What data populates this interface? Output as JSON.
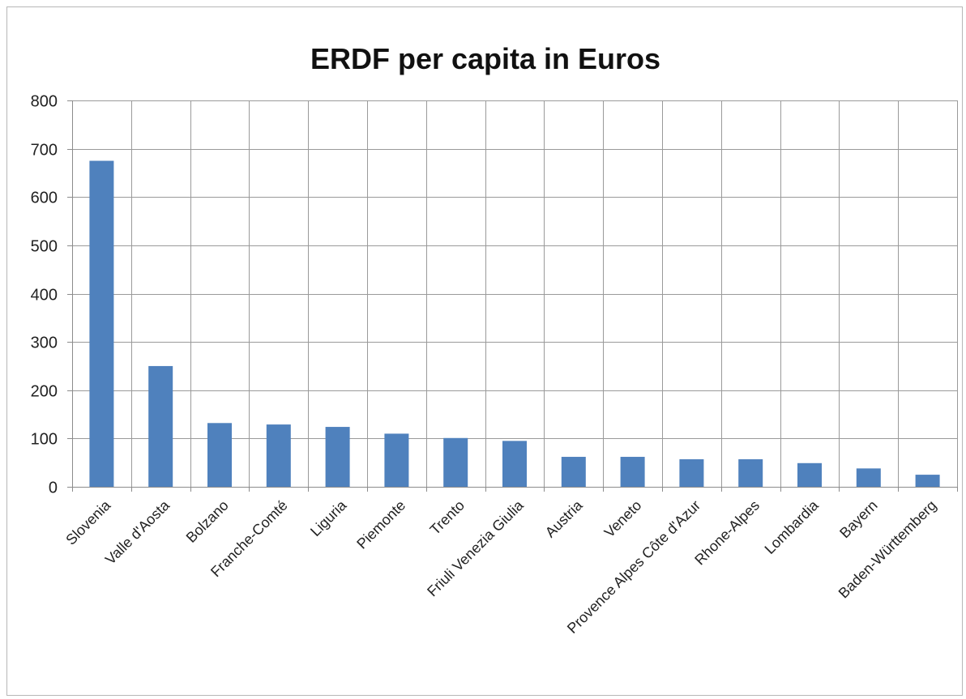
{
  "chart_data": {
    "type": "bar",
    "title": "ERDF per capita in Euros",
    "xlabel": "",
    "ylabel": "",
    "categories": [
      "Slovenia",
      "Valle d'Aosta",
      "Bolzano",
      "Franche-Comté",
      "Liguria",
      "Piemonte",
      "Trento",
      "Friuli Venezia Giulia",
      "Austria",
      "Veneto",
      "Provence Alpes Côte d'Azur",
      "Rhone-Alpes",
      "Lombardia",
      "Bayern",
      "Baden-Württemberg"
    ],
    "values": [
      675,
      250,
      132,
      129,
      124,
      110,
      101,
      95,
      62,
      62,
      57,
      57,
      49,
      38,
      25
    ],
    "ylim": [
      0,
      800
    ],
    "yticks": [
      0,
      100,
      200,
      300,
      400,
      500,
      600,
      700,
      800
    ],
    "grid": "both",
    "legend": "none",
    "bar_color": "#4f81bd"
  }
}
